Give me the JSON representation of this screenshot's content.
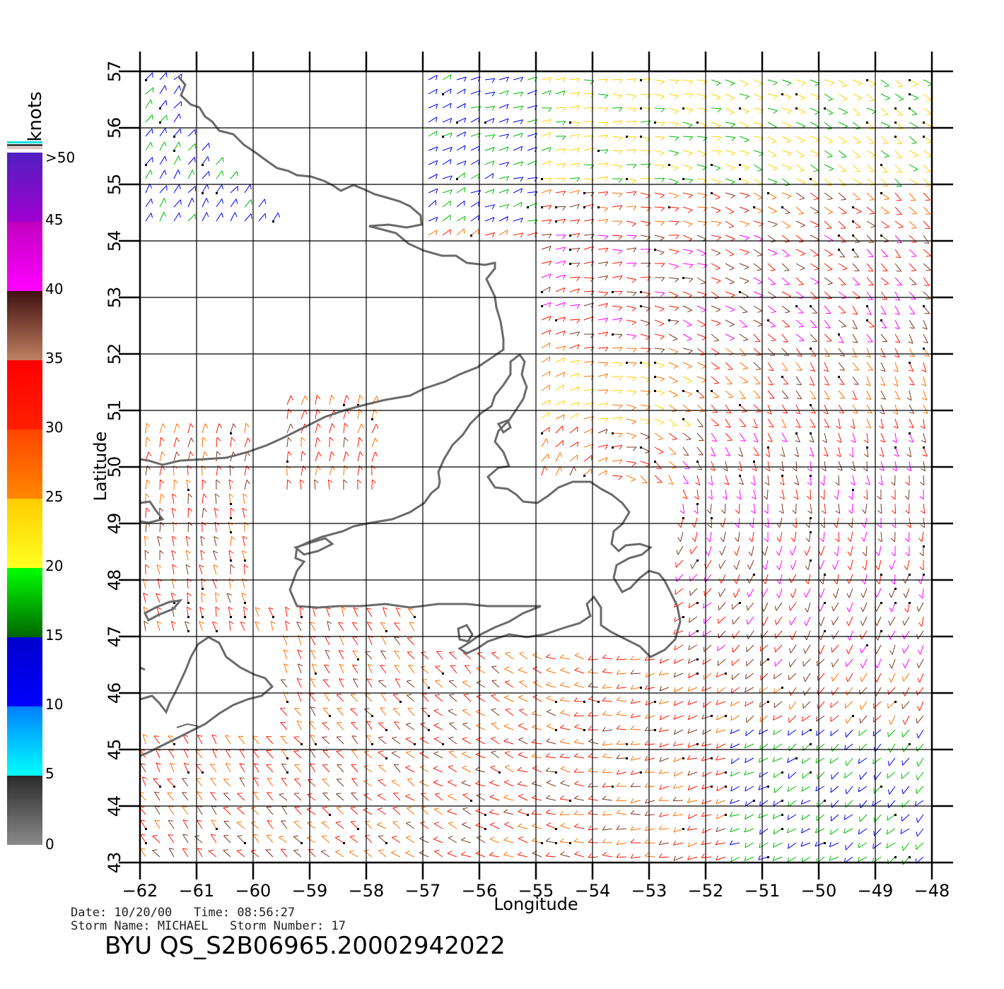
{
  "map": {
    "x_axis_label": "Longitude",
    "y_axis_label": "Latitude",
    "longitude_ticks": [
      "−62",
      "−61",
      "−60",
      "−59",
      "−58",
      "−57",
      "−56",
      "−55",
      "−54",
      "−53",
      "−52",
      "−51",
      "−50",
      "−49",
      "−48"
    ],
    "latitude_ticks": [
      "43",
      "44",
      "45",
      "46",
      "47",
      "48",
      "49",
      "50",
      "51",
      "52",
      "53",
      "54",
      "55",
      "56",
      "57"
    ],
    "lon_range": [
      -62,
      -48
    ],
    "lat_range": [
      43,
      57
    ],
    "grid": true,
    "land_color": "#ffffff",
    "coast_color": "#6a6a6a"
  },
  "colorbar": {
    "unit_label": "knots",
    "tick_labels": [
      "0",
      "5",
      "10",
      "15",
      "20",
      "25",
      "30",
      "35",
      "40",
      "45",
      ">50"
    ],
    "colors": {
      "0-5": "#5a5a5a",
      "5-10": "#00aaff",
      "10-15": "#0000ee",
      "15-20": "#00bb00",
      "20-25": "#ffd200",
      "25-30": "#ff7000",
      "30-35": "#ff1800",
      "35-40": "#7a3820",
      "40-45": "#ff00ff",
      "45-50": "#7020c0"
    }
  },
  "info": {
    "line1": "Date: 10/20/00   Time: 08:56:27",
    "line2": "Storm Name: MICHAEL   Storm Number: 17",
    "product_id": "BYU QS_S2B06965.20002942022"
  }
}
